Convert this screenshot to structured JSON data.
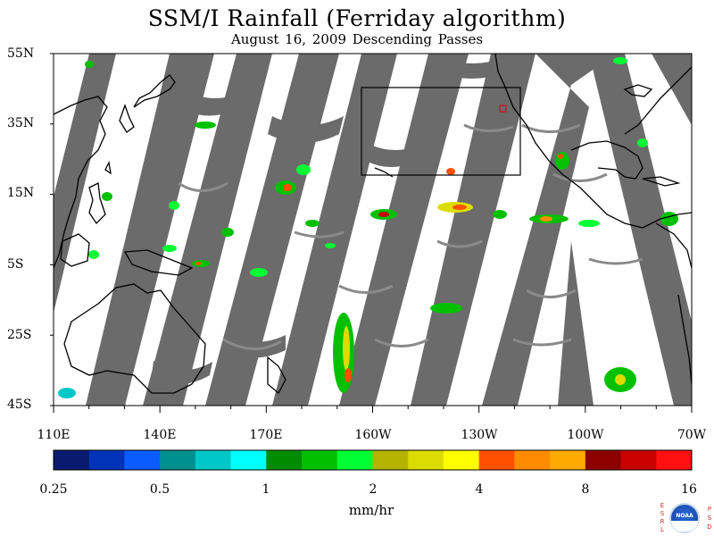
{
  "title": "SSM/I Rainfall (Ferriday algorithm)",
  "subtitle": "August 16, 2009  Descending Passes",
  "map": {
    "lat_ticks": [
      "55N",
      "35N",
      "15N",
      "5S",
      "25S",
      "45S"
    ],
    "lon_ticks": [
      "110E",
      "140E",
      "170E",
      "160W",
      "130W",
      "100W",
      "70W"
    ],
    "swath_color": "#6b6b6b",
    "coast_color": "#000000"
  },
  "colorbar": {
    "colors": [
      "#0a1a6e",
      "#0033b8",
      "#0a5cff",
      "#009090",
      "#00c8c8",
      "#00ffff",
      "#008c00",
      "#00c000",
      "#00ff33",
      "#b4b400",
      "#dcdc00",
      "#ffff00",
      "#ff5000",
      "#ff8c00",
      "#ffaa00",
      "#8c0000",
      "#c80000",
      "#ff1010"
    ],
    "labels": [
      "0.25",
      "0.5",
      "1",
      "2",
      "4",
      "8",
      "16"
    ],
    "units": "mm/hr"
  },
  "logo": {
    "left_letters": [
      "E",
      "S",
      "R",
      "L"
    ],
    "right_letters": [
      "P",
      "S",
      "D"
    ],
    "emblem_text": "NOAA"
  }
}
